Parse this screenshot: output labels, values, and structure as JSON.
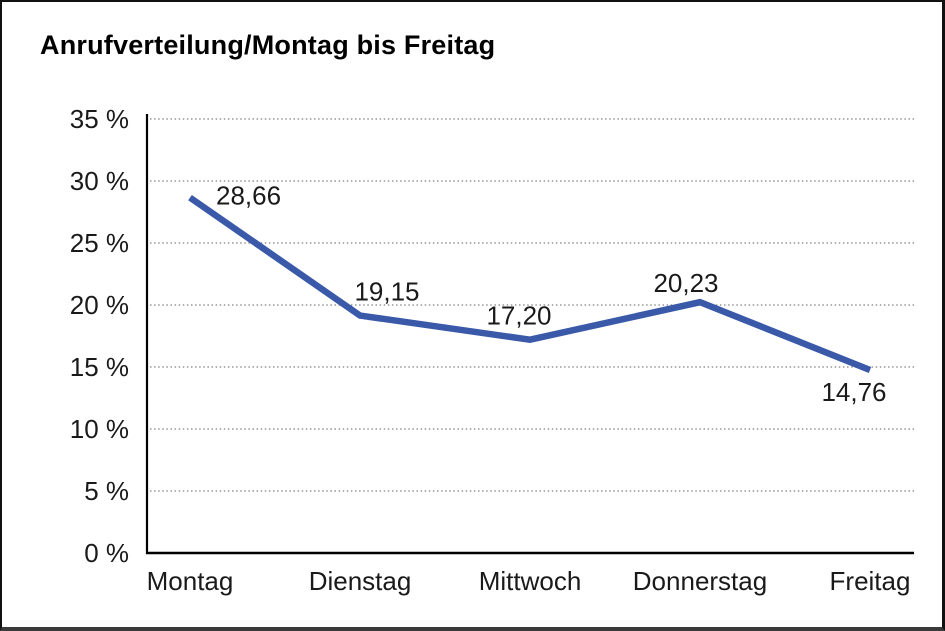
{
  "chart_data": {
    "type": "line",
    "title": "Anrufverteilung/Montag bis Freitag",
    "categories": [
      "Montag",
      "Dienstag",
      "Mittwoch",
      "Donnerstag",
      "Freitag"
    ],
    "values": [
      28.66,
      19.15,
      17.2,
      20.23,
      14.76
    ],
    "point_labels": [
      "28,66",
      "19,15",
      "17,20",
      "20,23",
      "14,76"
    ],
    "xlabel": "",
    "ylabel": "",
    "ylim": [
      0,
      35
    ],
    "ytick_step": 5,
    "ytick_labels": [
      "0 %",
      "5 %",
      "10 %",
      "15 %",
      "20 %",
      "25 %",
      "30 %",
      "35 %"
    ],
    "grid": "horizontal-dotted",
    "legend_position": "none",
    "line_color": "#3A59A8",
    "axis_color": "#000000",
    "gridline_color": "#808080",
    "text_color": "#1a1a1a",
    "decimal_separator": ","
  }
}
